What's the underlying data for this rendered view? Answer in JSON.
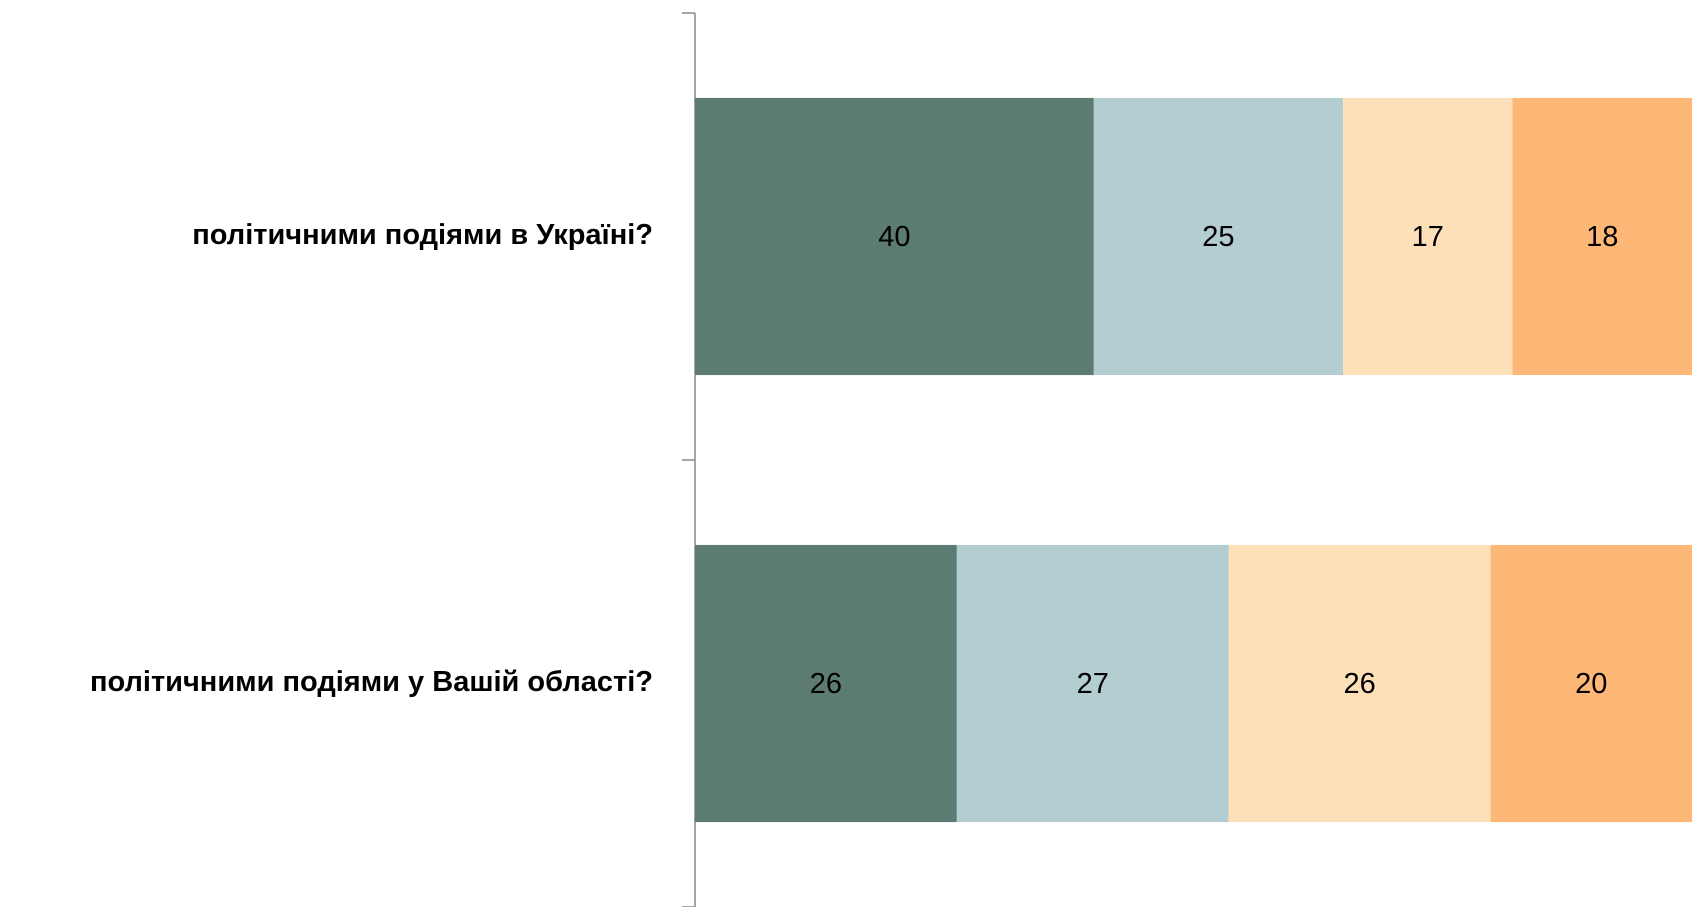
{
  "chart_data": {
    "type": "bar",
    "orientation": "horizontal",
    "stacked": "percent",
    "categories": [
      "політичними подіями в Україні?",
      "політичними подіями у Вашій області?"
    ],
    "series": [
      {
        "color": "#5b7b73",
        "values": [
          40,
          26
        ]
      },
      {
        "color": "#b3cdd1",
        "values": [
          25,
          27
        ]
      },
      {
        "color": "#fde0b8",
        "values": [
          17,
          26
        ]
      },
      {
        "color": "#fdb878",
        "values": [
          18,
          20
        ]
      }
    ]
  }
}
